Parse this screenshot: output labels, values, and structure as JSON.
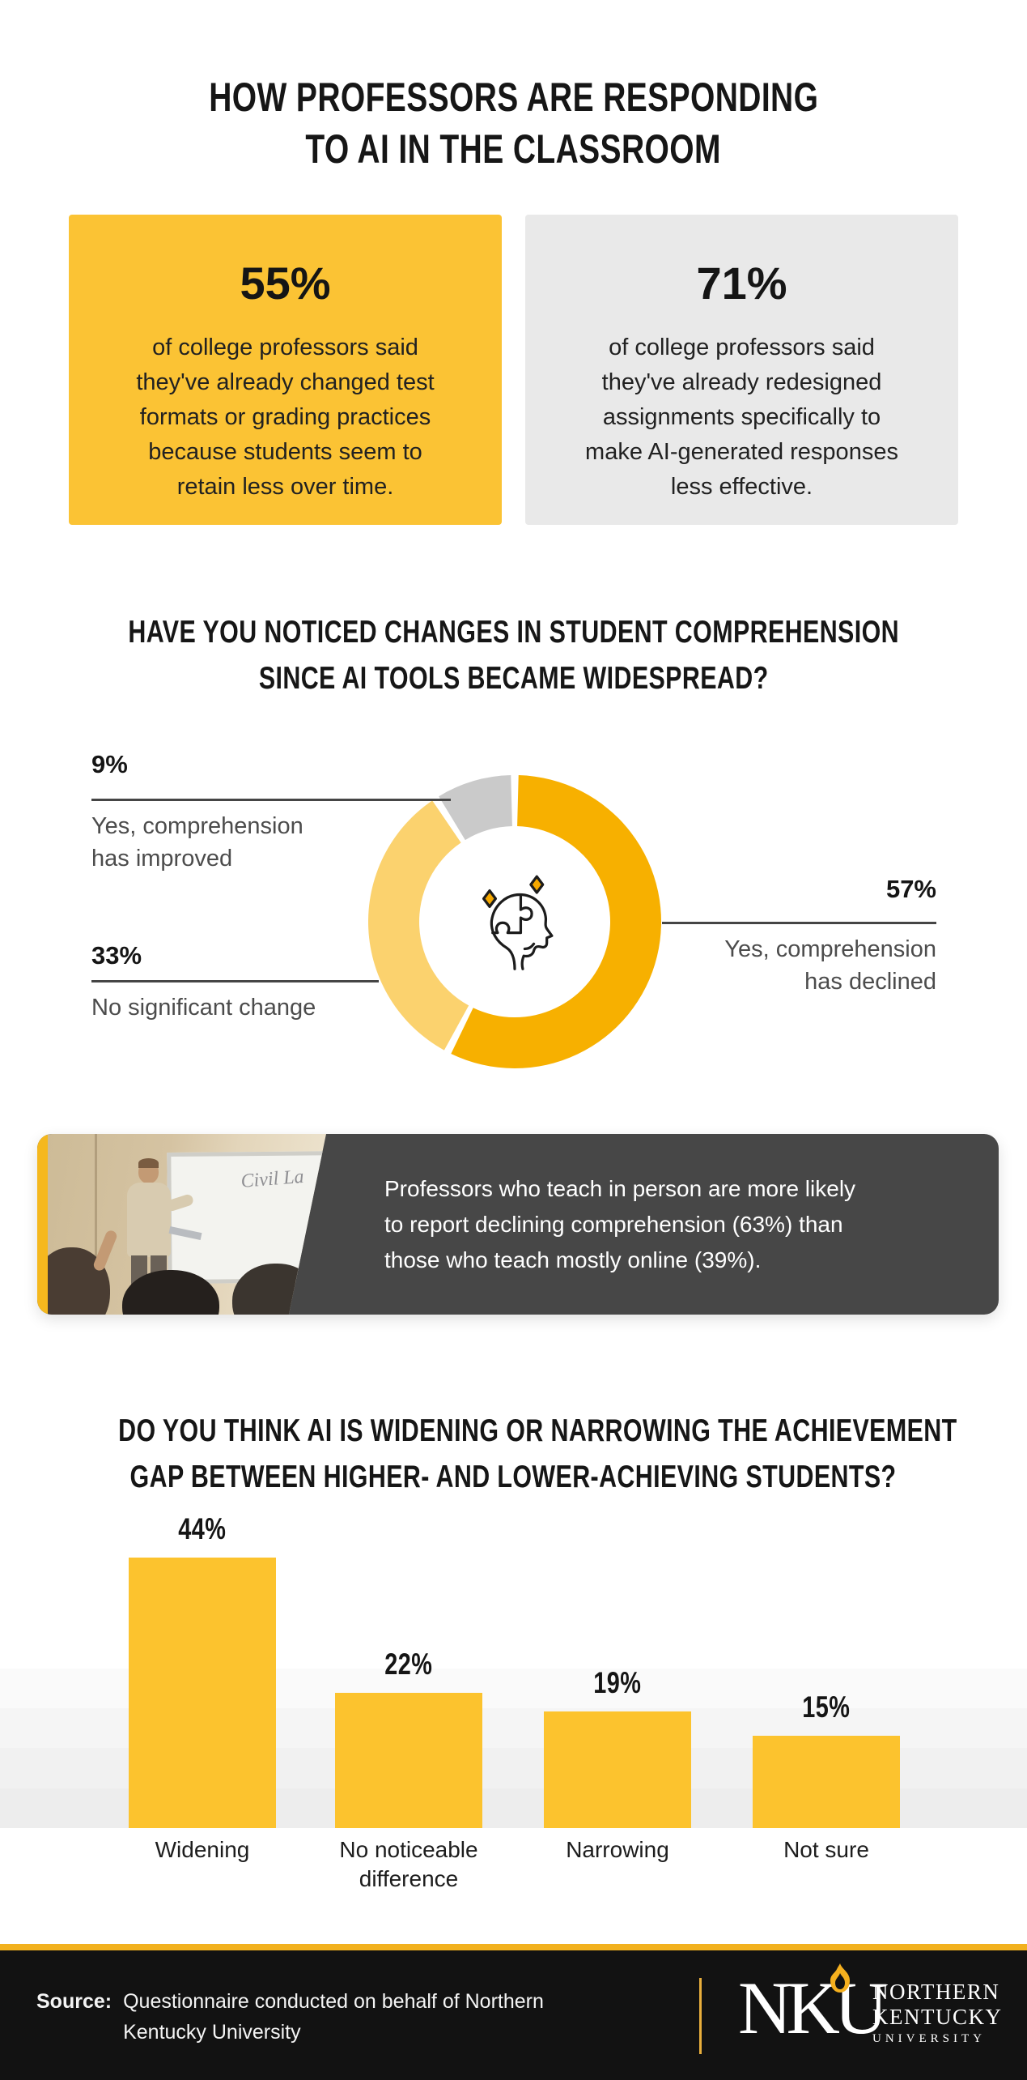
{
  "title": {
    "line1": "HOW PROFESSORS ARE RESPONDING",
    "line2": "TO AI IN THE CLASSROOM"
  },
  "stat_boxes": [
    {
      "value": "55%",
      "lines": [
        "of college professors said",
        "they've already changed test",
        "formats or grading practices",
        "because students seem to",
        "retain less over time."
      ]
    },
    {
      "value": "71%",
      "lines": [
        "of college professors said",
        "they've already redesigned",
        "assignments specifically to",
        "make AI-generated responses",
        "less effective."
      ]
    }
  ],
  "comprehension_section": {
    "heading_line1": "HAVE YOU NOTICED CHANGES IN STUDENT COMPREHENSION",
    "heading_line2": "SINCE AI TOOLS BECAME WIDESPREAD?",
    "labels": [
      {
        "pct": "9%",
        "line1": "Yes, comprehension",
        "line2": "has improved"
      },
      {
        "pct": "33%",
        "line1": "No significant change",
        "line2": ""
      },
      {
        "pct": "57%",
        "line1": "Yes, comprehension",
        "line2": "has declined"
      }
    ]
  },
  "callout": {
    "lines": [
      "Professors who teach in person are more likely",
      "to report declining comprehension (63%) than",
      "those who teach mostly online (39%)."
    ],
    "whiteboard_text": "Civil La"
  },
  "gap_section": {
    "heading_line1": "DO YOU THINK AI IS WIDENING OR NARROWING THE ACHIEVEMENT",
    "heading_line2": "GAP BETWEEN HIGHER- AND LOWER-ACHIEVING STUDENTS?"
  },
  "footer": {
    "source_label": "Source:",
    "source_line1": "Questionnaire conducted on behalf of Northern",
    "source_line2": "Kentucky University",
    "logo_monogram": "NKU",
    "logo_line1": "NORTHERN",
    "logo_line2": "KENTUCKY",
    "logo_line3": "UNIVERSITY"
  },
  "colors": {
    "stat_yellow": "#FBC334",
    "stat_gray": "#E9E9E9",
    "bar_yellow": "#FCC32E",
    "donut_orange": "#F7B000",
    "donut_light": "#FBD26E",
    "donut_gray": "#CACACA",
    "callout_bg": "#474747",
    "callout_stripe": "#F5B81E",
    "footer_bg": "#121212",
    "footer_gold": "#F2B11E"
  },
  "chart_data": [
    {
      "type": "pie",
      "donut": true,
      "title": "Have you noticed changes in student comprehension since AI tools became widespread?",
      "labels": [
        "Yes, comprehension has declined",
        "No significant change",
        "Yes, comprehension has improved"
      ],
      "values": [
        57,
        33,
        9
      ],
      "colors": [
        "#F7B000",
        "#FBD26E",
        "#CACACA"
      ],
      "start": "top",
      "direction": "clockwise",
      "gap_degrees": 3,
      "legend_position": "callout-lines"
    },
    {
      "type": "bar",
      "title": "Do you think AI is widening or narrowing the achievement gap between higher- and lower-achieving students?",
      "categories": [
        "Widening",
        "No noticeable difference",
        "Narrowing",
        "Not sure"
      ],
      "values": [
        44,
        22,
        19,
        15
      ],
      "value_labels": [
        "44%",
        "22%",
        "19%",
        "15%"
      ],
      "bar_color": "#FCC32E",
      "xlabel": "",
      "ylabel": "",
      "ylim": [
        0,
        50
      ],
      "grid": false,
      "legend": false
    }
  ]
}
